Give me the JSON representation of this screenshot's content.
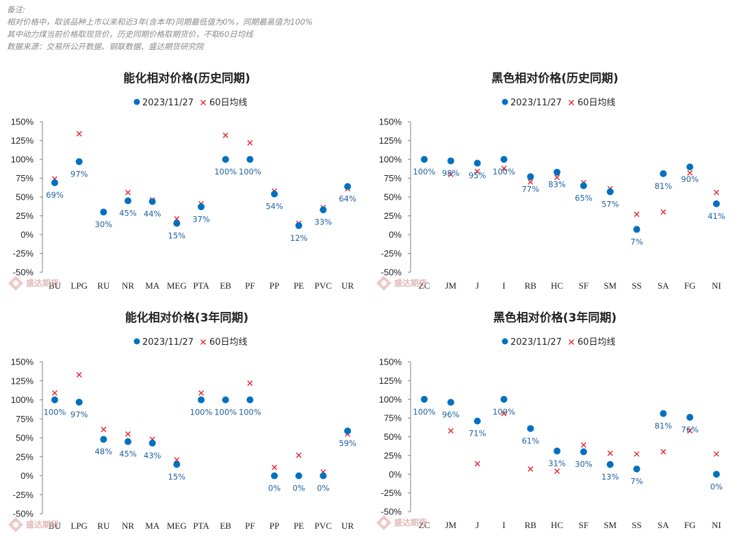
{
  "notes": [
    "备注:",
    "相对价格中，取该品种上市以来和近3年(含本年)同期最低值为0%，同期最高值为100%",
    "其中动力煤当前价格取现货价，历史同期价格取期货价，不取60日均线",
    "数据来源：交易所公开数据、钢联数据、盛达期货研究院"
  ],
  "watermark": "盛达期货",
  "colors": {
    "dot": "#0070c0",
    "cross": "#e8202a",
    "label": "#1f5fa0"
  },
  "chart_data": [
    {
      "type": "scatter",
      "title": "能化相对价格(历史同期)",
      "legend": [
        "2023/11/27",
        "60日均线"
      ],
      "legend_placement": "top-center",
      "ylim": [
        -50,
        150
      ],
      "yticks": [
        "150%",
        "125%",
        "100%",
        "75%",
        "50%",
        "25%",
        "0%",
        "-25%",
        "-50%"
      ],
      "categories": [
        "BU",
        "LPG",
        "RU",
        "NR",
        "MA",
        "MEG",
        "PTA",
        "EB",
        "PF",
        "PP",
        "PE",
        "PVC",
        "UR"
      ],
      "series": [
        {
          "name": "2023/11/27",
          "values": [
            69,
            97,
            30,
            45,
            44,
            15,
            37,
            100,
            100,
            54,
            12,
            33,
            64
          ],
          "labels": [
            "69%",
            "97%",
            "30%",
            "45%",
            "44%",
            "15%",
            "37%",
            "100%",
            "100%",
            "54%",
            "12%",
            "33%",
            "64%"
          ]
        },
        {
          "name": "60日均线",
          "values": [
            74,
            134,
            30,
            56,
            46,
            21,
            41,
            132,
            122,
            58,
            15,
            36,
            61
          ]
        }
      ]
    },
    {
      "type": "scatter",
      "title": "黑色相对价格(历史同期)",
      "legend": [
        "2023/11/27",
        "60日均线"
      ],
      "legend_placement": "top-center",
      "ylim": [
        -50,
        150
      ],
      "yticks": [
        "150%",
        "125%",
        "100%",
        "75%",
        "50%",
        "25%",
        "0%",
        "-25%",
        "-50%"
      ],
      "categories": [
        "ZC",
        "JM",
        "J",
        "I",
        "RB",
        "HC",
        "SF",
        "SM",
        "SS",
        "SA",
        "FG",
        "NI"
      ],
      "series": [
        {
          "name": "2023/11/27",
          "values": [
            100,
            98,
            95,
            100,
            77,
            83,
            65,
            57,
            7,
            81,
            90,
            41
          ],
          "labels": [
            "100%",
            "98%",
            "95%",
            "100%",
            "77%",
            "83%",
            "65%",
            "57%",
            "7%",
            "81%",
            "90%",
            "41%"
          ]
        },
        {
          "name": "60日均线",
          "values": [
            null,
            80,
            84,
            88,
            70,
            76,
            69,
            61,
            27,
            30,
            82,
            56
          ]
        }
      ]
    },
    {
      "type": "scatter",
      "title": "能化相对价格(3年同期)",
      "legend": [
        "2023/11/27",
        "60日均线"
      ],
      "legend_placement": "top-center",
      "ylim": [
        -50,
        150
      ],
      "yticks": [
        "150%",
        "125%",
        "100%",
        "75%",
        "50%",
        "25%",
        "0%",
        "-25%",
        "-50%"
      ],
      "categories": [
        "BU",
        "LPG",
        "RU",
        "NR",
        "MA",
        "MEG",
        "PTA",
        "EB",
        "PF",
        "PP",
        "PE",
        "PVC",
        "UR"
      ],
      "series": [
        {
          "name": "2023/11/27",
          "values": [
            100,
            97,
            48,
            45,
            43,
            15,
            100,
            100,
            100,
            0,
            0,
            0,
            59
          ],
          "labels": [
            "100%",
            "97%",
            "48%",
            "45%",
            "43%",
            "15%",
            "100%",
            "100%",
            "100%",
            "0%",
            "0%",
            "0%",
            "59%"
          ]
        },
        {
          "name": "60日均线",
          "values": [
            109,
            133,
            61,
            55,
            48,
            21,
            109,
            null,
            122,
            11,
            27,
            5,
            55
          ]
        }
      ]
    },
    {
      "type": "scatter",
      "title": "黑色相对价格(3年同期)",
      "legend": [
        "2023/11/27",
        "60日均线"
      ],
      "legend_placement": "top-center",
      "ylim": [
        -50,
        150
      ],
      "yticks": [
        "150%",
        "125%",
        "100%",
        "75%",
        "50%",
        "25%",
        "0%",
        "-25%",
        "-50%"
      ],
      "categories": [
        "ZC",
        "JM",
        "J",
        "I",
        "RB",
        "HC",
        "SF",
        "SM",
        "SS",
        "SA",
        "FG",
        "NI"
      ],
      "series": [
        {
          "name": "2023/11/27",
          "values": [
            100,
            96,
            71,
            100,
            61,
            31,
            30,
            13,
            7,
            81,
            76,
            0
          ],
          "labels": [
            "100%",
            "96%",
            "71%",
            "100%",
            "61%",
            "31%",
            "30%",
            "13%",
            "7%",
            "81%",
            "76%",
            "0%"
          ]
        },
        {
          "name": "60日均线",
          "values": [
            null,
            58,
            14,
            81,
            7,
            4,
            39,
            28,
            27,
            30,
            58,
            27
          ]
        }
      ]
    }
  ]
}
